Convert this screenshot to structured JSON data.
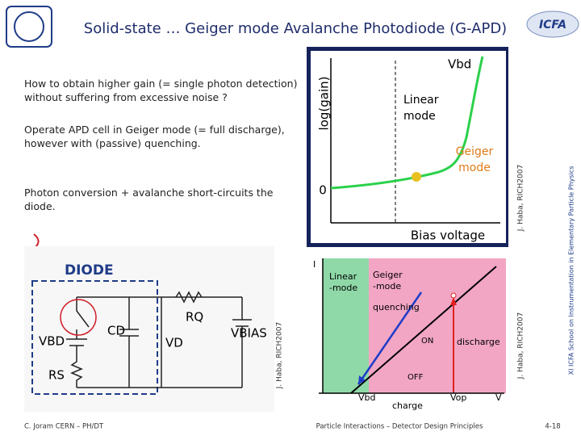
{
  "header": {
    "title": "Solid-state … Geiger mode Avalanche Photodiode (G-APD)",
    "logo": "ICFA"
  },
  "bullets": [
    "How to obtain higher gain (= single photon detection) without suffering from excessive noise ?",
    "Operate APD cell in Geiger mode (= full discharge), however with (passive) quenching.",
    "Photon conversion + avalanche short-circuits the diode."
  ],
  "gain_plot": {
    "breakdown": "Vbd",
    "y_label": "log(gain)",
    "linear": [
      "Linear",
      "mode"
    ],
    "geiger": [
      "Geiger",
      "mode"
    ],
    "zero": "0",
    "x_label": "Bias voltage",
    "credit": "J. Haba, RICH2007"
  },
  "circuit": {
    "title": "DIODE",
    "v_bd": "VBD",
    "c_d": "CD",
    "v_d": "VD",
    "r_q": "RQ",
    "v_bias": "VBIAS",
    "r_s": "RS",
    "credit": "J. Haba, RICH2007"
  },
  "iv_plot": {
    "y_label": "I",
    "linear": [
      "Linear",
      "-mode"
    ],
    "geiger": [
      "Geiger",
      "-mode"
    ],
    "quenching": "quenching",
    "on": "ON",
    "discharge": "discharge",
    "off": "OFF",
    "vbd": "Vbd",
    "vop": "Vop",
    "x_label": "V",
    "charge": "charge",
    "credit": "J. Haba, RICH2007"
  },
  "side_note": "XI ICFA School on Instrumentation in Elementary Particle Physics",
  "footer": {
    "author": "C. Joram CERN – PH/DT",
    "course": "Particle Interactions – Detector Design Principles",
    "page": "4-18"
  }
}
